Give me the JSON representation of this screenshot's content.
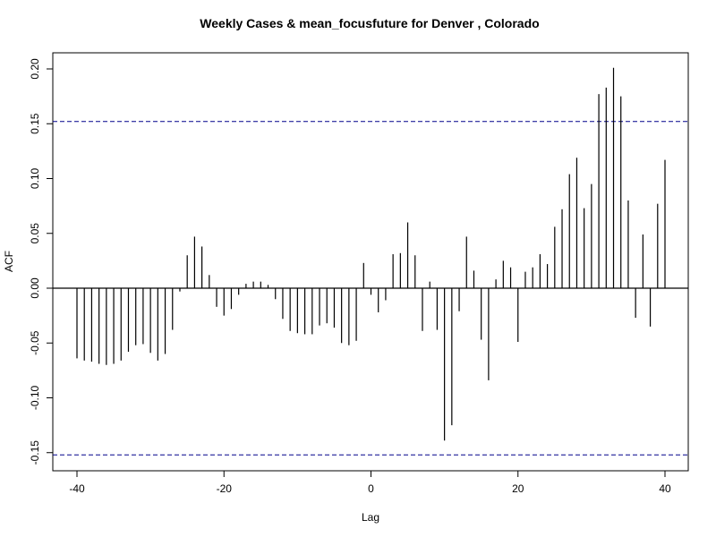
{
  "chart_data": {
    "type": "bar",
    "subtype": "acf-lag-plot",
    "title": "Weekly Cases & mean_focusfuture for Denver , Colorado",
    "xlabel": "Lag",
    "ylabel": "ACF",
    "xlim": [
      -40,
      40
    ],
    "ylim": [
      -0.165,
      0.21
    ],
    "x_ticks": [
      "-40",
      "-20",
      "0",
      "20",
      "40"
    ],
    "y_ticks": [
      "-0.15",
      "-0.10",
      "-0.05",
      "0.00",
      "0.05",
      "0.10",
      "0.15",
      "0.20"
    ],
    "confidence_bounds": [
      0.152,
      -0.152
    ],
    "zero_line": 0,
    "x": [
      -40,
      -39,
      -38,
      -37,
      -36,
      -35,
      -34,
      -33,
      -32,
      -31,
      -30,
      -29,
      -28,
      -27,
      -26,
      -25,
      -24,
      -23,
      -22,
      -21,
      -20,
      -19,
      -18,
      -17,
      -16,
      -15,
      -14,
      -13,
      -12,
      -11,
      -10,
      -9,
      -8,
      -7,
      -6,
      -5,
      -4,
      -3,
      -2,
      -1,
      0,
      1,
      2,
      3,
      4,
      5,
      6,
      7,
      8,
      9,
      10,
      11,
      12,
      13,
      14,
      15,
      16,
      17,
      18,
      19,
      20,
      21,
      22,
      23,
      24,
      25,
      26,
      27,
      28,
      29,
      30,
      31,
      32,
      33,
      34,
      35,
      36,
      37,
      38,
      39,
      40
    ],
    "values": [
      -0.064,
      -0.066,
      -0.067,
      -0.069,
      -0.07,
      -0.069,
      -0.066,
      -0.058,
      -0.052,
      -0.051,
      -0.059,
      -0.066,
      -0.06,
      -0.038,
      -0.003,
      0.03,
      0.047,
      0.038,
      0.012,
      -0.017,
      -0.025,
      -0.019,
      -0.006,
      0.004,
      0.006,
      0.006,
      0.003,
      -0.01,
      -0.028,
      -0.039,
      -0.041,
      -0.042,
      -0.042,
      -0.034,
      -0.032,
      -0.036,
      -0.05,
      -0.052,
      -0.048,
      0.023,
      -0.006,
      -0.022,
      -0.011,
      0.031,
      0.032,
      0.06,
      0.03,
      -0.039,
      0.006,
      -0.038,
      -0.139,
      -0.125,
      -0.021,
      0.047,
      0.016,
      -0.047,
      -0.084,
      0.008,
      0.025,
      0.019,
      -0.049,
      0.015,
      0.019,
      0.031,
      0.022,
      0.056,
      0.072,
      0.104,
      0.119,
      0.073,
      0.095,
      0.177,
      0.183,
      0.201,
      0.175,
      0.08,
      -0.027,
      0.049,
      -0.035,
      0.077,
      0.117
    ],
    "grid": false,
    "colors": {
      "lines": "#000000",
      "confidence": "#00008b",
      "background": "#ffffff"
    }
  }
}
